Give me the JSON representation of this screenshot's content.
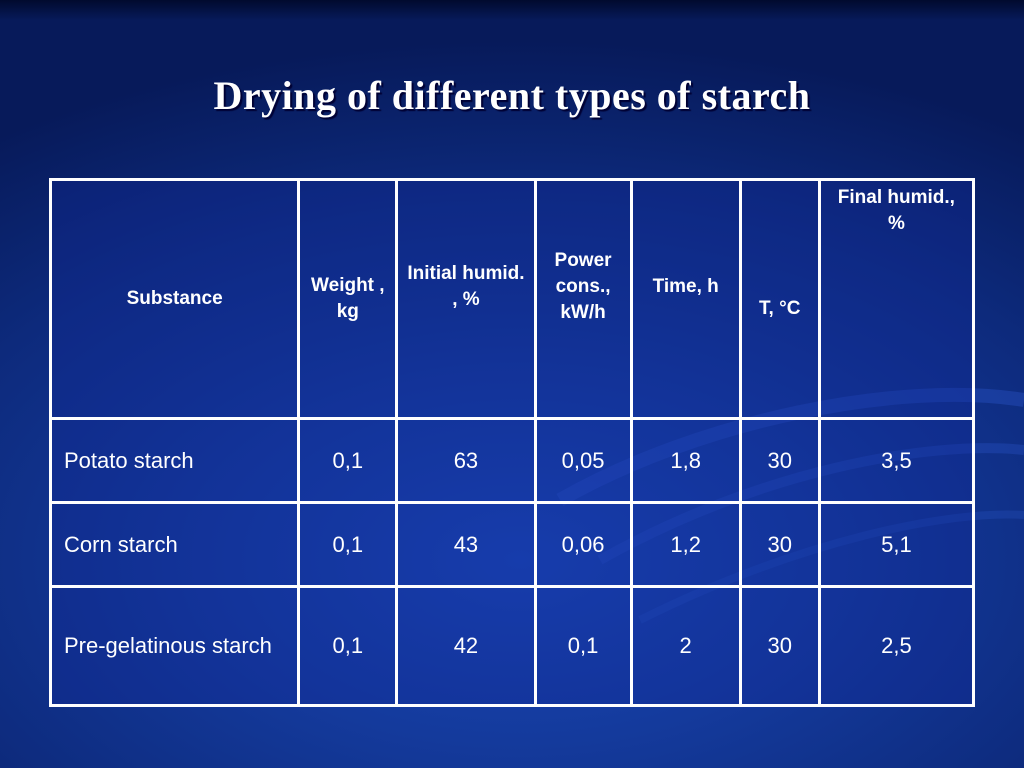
{
  "slide": {
    "title": "Drying of different types of starch"
  },
  "table": {
    "headers": [
      "Substance",
      "Weight , kg",
      "Initial humid. , %",
      "Power cons., kW/h",
      "Time, h",
      "T, °C",
      "Final humid., %"
    ],
    "rows": [
      [
        "Potato starch",
        "0,1",
        "63",
        "0,05",
        "1,8",
        "30",
        "3,5"
      ],
      [
        "Corn starch",
        "0,1",
        "43",
        "0,06",
        "1,2",
        "30",
        "5,1"
      ],
      [
        "Pre-gelatinous starch",
        "0,1",
        "42",
        "0,1",
        "2",
        "30",
        "2,5"
      ]
    ]
  },
  "colors": {
    "background": "#0d2a7c",
    "text": "#ffffff",
    "grid": "#ffffff"
  }
}
